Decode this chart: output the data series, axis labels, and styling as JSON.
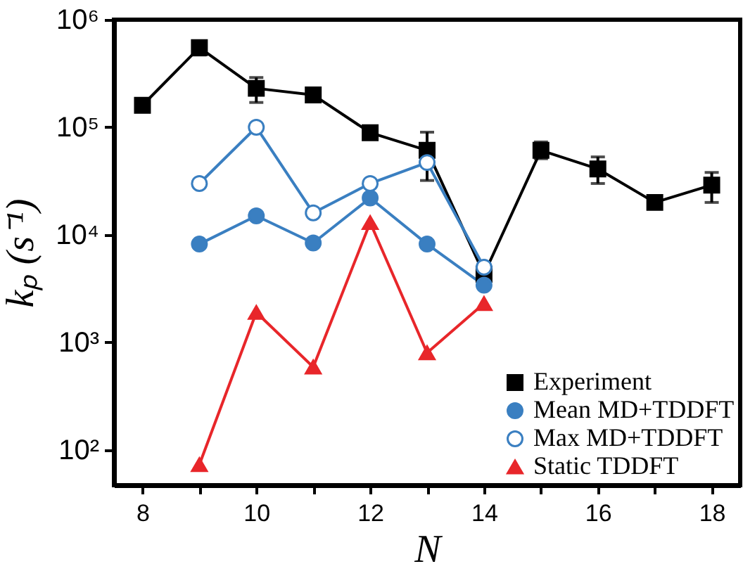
{
  "chart_data": {
    "type": "line",
    "xlabel": "N",
    "ylabel": "kₚ (s⁻¹)",
    "log": "y",
    "grid": false,
    "legend": "bottom right",
    "xlim": [
      7.5,
      18.5
    ],
    "xticks": [
      8,
      {
        "value": 9,
        "label": null
      },
      10,
      {
        "value": 11,
        "label": null
      },
      12,
      {
        "value": 13,
        "label": null
      },
      14,
      {
        "value": 15,
        "label": null
      },
      16,
      {
        "value": 17,
        "label": null
      },
      18
    ],
    "ylim": [
      47,
      1000000
    ],
    "yticks": [
      {
        "value": 100,
        "label": "10²"
      },
      {
        "value": 1000,
        "label": "10³"
      },
      {
        "value": 10000,
        "label": "10⁴"
      },
      {
        "value": 100000,
        "label": "10⁵"
      },
      {
        "value": 1000000,
        "label": "10⁶"
      }
    ],
    "series": [
      {
        "name": "Experiment",
        "color": "#000000",
        "marker": "square",
        "x": [
          8,
          9,
          10,
          11,
          12,
          13,
          14,
          15,
          16,
          17,
          18
        ],
        "values": [
          160000,
          550000,
          230000,
          200000,
          89000,
          61000,
          4300,
          61000,
          41000,
          20000,
          29000
        ],
        "errors": [
          null,
          [
            470000,
            600000
          ],
          [
            170000,
            290000
          ],
          [
            176000,
            220000
          ],
          [
            81000,
            98000
          ],
          [
            32000,
            90000
          ],
          null,
          [
            51000,
            73000
          ],
          [
            30000,
            53000
          ],
          null,
          [
            20000,
            38000
          ]
        ]
      },
      {
        "name": "Mean MD+TDDFT",
        "color": "#3a7fc1",
        "marker": "circle",
        "x": [
          9,
          10,
          11,
          12,
          13,
          14
        ],
        "values": [
          8200,
          15000,
          8400,
          22000,
          8200,
          3400
        ]
      },
      {
        "name": "Max MD+TDDFT",
        "color": "#3a7fc1",
        "marker": "circle",
        "x": [
          9,
          10,
          11,
          12,
          13,
          14
        ],
        "values": [
          30000,
          100000,
          16000,
          30000,
          47000,
          5000
        ]
      },
      {
        "name": "Static TDDFT",
        "color": "#e8262a",
        "marker": "triangle",
        "x": [
          9,
          10,
          11,
          12,
          13,
          14
        ],
        "values": [
          73,
          1900,
          590,
          13000,
          800,
          2300
        ]
      }
    ]
  }
}
